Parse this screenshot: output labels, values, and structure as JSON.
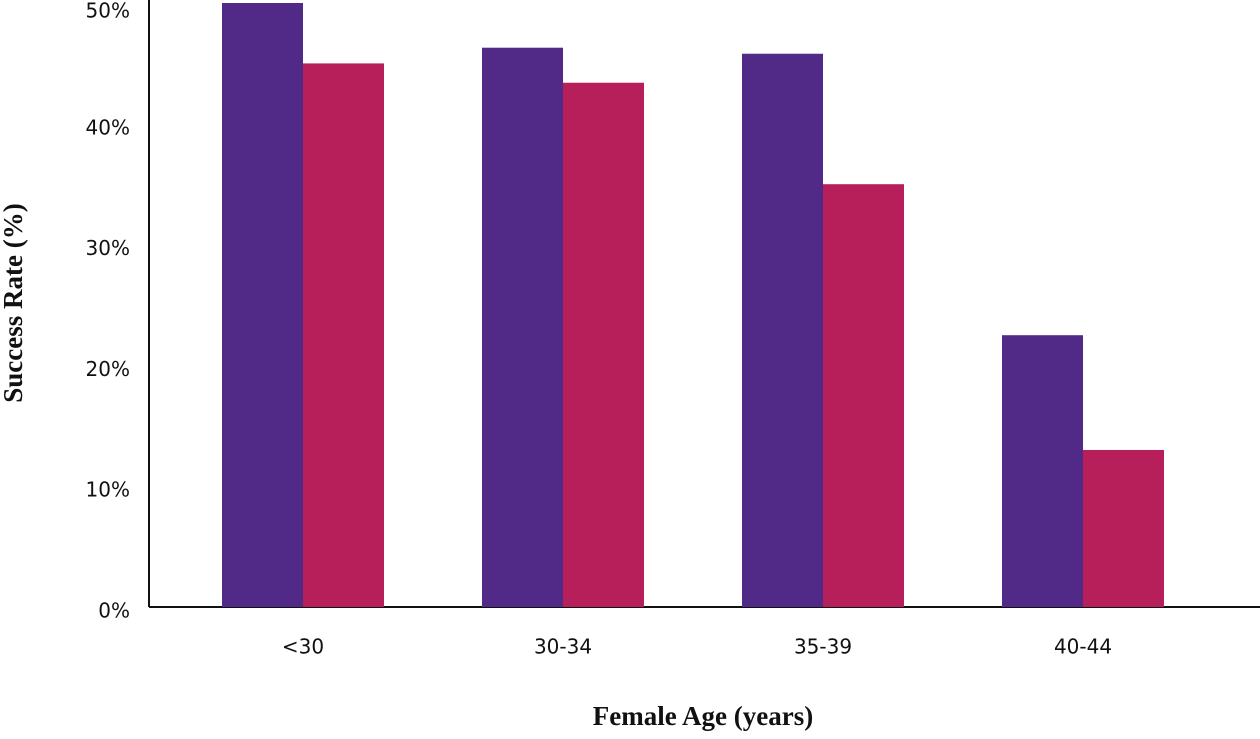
{
  "chart_data": {
    "type": "bar",
    "x_label": "Female Age (years)",
    "y_label": "Success Rate (%)",
    "categories": [
      "<30",
      "30-34",
      "35-39",
      "40-44"
    ],
    "series": [
      {
        "color": "#512a87",
        "values": [
          50,
          46.3,
          45.8,
          22.5
        ]
      },
      {
        "color": "#b71f5a",
        "values": [
          45,
          43.4,
          35,
          13
        ]
      }
    ],
    "ylim": [
      0,
      50
    ],
    "yticks": [
      {
        "value": 0,
        "label": "0%"
      },
      {
        "value": 10,
        "label": "10%"
      },
      {
        "value": 20,
        "label": "20%"
      },
      {
        "value": 30,
        "label": "30%"
      },
      {
        "value": 40,
        "label": "40%"
      },
      {
        "value": 50,
        "label": "50%"
      }
    ],
    "grid": false
  }
}
